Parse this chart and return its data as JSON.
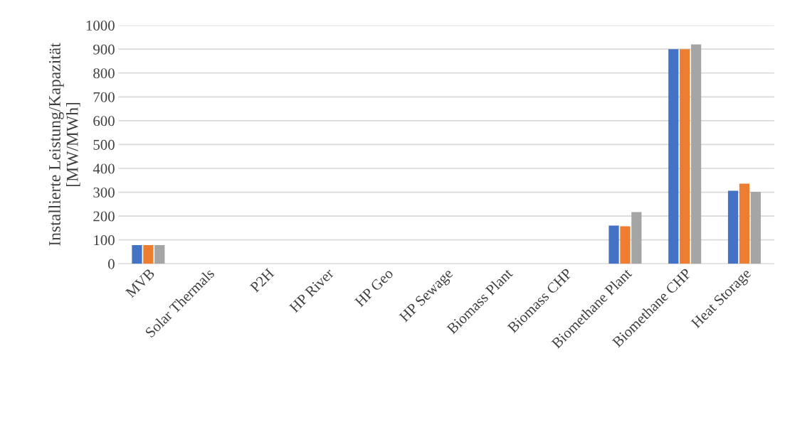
{
  "chart_data": {
    "type": "bar",
    "ylabel": "Installierte Leistung/Kapazität [MW/MWh]",
    "categories": [
      "MVB",
      "Solar Thermals",
      "P2H",
      "HP River",
      "HP Geo",
      "HP Sewage",
      "Biomass Plant",
      "Biomass CHP",
      "Biomethane Plant",
      "Biomethane CHP",
      "Heat Storage"
    ],
    "series": [
      {
        "color": "#4472c4",
        "values": [
          78,
          0,
          0,
          0,
          0,
          0,
          0,
          0,
          160,
          900,
          306
        ]
      },
      {
        "color": "#ed7d31",
        "values": [
          78,
          0,
          0,
          0,
          0,
          0,
          0,
          0,
          157,
          900,
          336
        ]
      },
      {
        "color": "#a5a5a5",
        "values": [
          78,
          0,
          0,
          0,
          0,
          0,
          0,
          0,
          217,
          920,
          302
        ]
      }
    ],
    "ylim": [
      0,
      1000
    ],
    "yticks": [
      0,
      100,
      200,
      300,
      400,
      500,
      600,
      700,
      800,
      900,
      1000
    ],
    "grid": "y"
  }
}
